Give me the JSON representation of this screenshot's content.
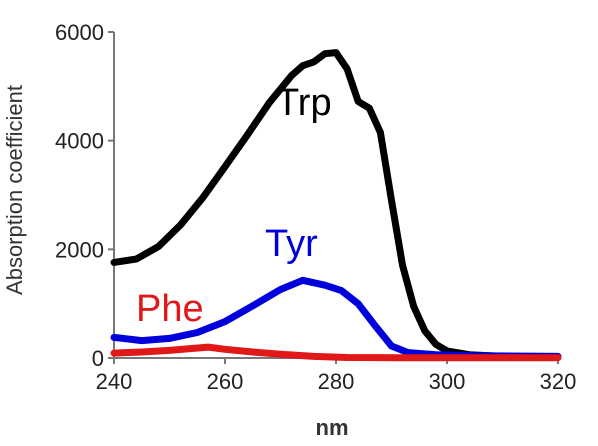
{
  "chart_data": {
    "type": "line",
    "title": "",
    "xlabel": "nm",
    "ylabel": "Absorption coefficient",
    "xlim": [
      240,
      320
    ],
    "ylim": [
      0,
      6000
    ],
    "grid": false,
    "legend": "none",
    "x_ticks": [
      "240",
      "260",
      "280",
      "300",
      "320"
    ],
    "y_ticks": [
      "0",
      "2000",
      "4000",
      "6000"
    ],
    "series": [
      {
        "name": "Trp",
        "color": "#000000",
        "points": [
          [
            240,
            1760
          ],
          [
            244,
            1820
          ],
          [
            248,
            2050
          ],
          [
            252,
            2450
          ],
          [
            256,
            2950
          ],
          [
            260,
            3520
          ],
          [
            264,
            4100
          ],
          [
            268,
            4700
          ],
          [
            272,
            5200
          ],
          [
            274,
            5380
          ],
          [
            276,
            5450
          ],
          [
            278,
            5600
          ],
          [
            280,
            5620
          ],
          [
            282,
            5320
          ],
          [
            284,
            4720
          ],
          [
            286,
            4600
          ],
          [
            288,
            4150
          ],
          [
            290,
            2900
          ],
          [
            292,
            1700
          ],
          [
            294,
            950
          ],
          [
            296,
            500
          ],
          [
            298,
            250
          ],
          [
            300,
            130
          ],
          [
            304,
            60
          ],
          [
            310,
            30
          ],
          [
            320,
            20
          ]
        ]
      },
      {
        "name": "Tyr",
        "color": "#0000dd",
        "points": [
          [
            240,
            380
          ],
          [
            245,
            320
          ],
          [
            250,
            360
          ],
          [
            255,
            470
          ],
          [
            260,
            670
          ],
          [
            265,
            960
          ],
          [
            270,
            1260
          ],
          [
            274,
            1430
          ],
          [
            278,
            1340
          ],
          [
            281,
            1240
          ],
          [
            284,
            1000
          ],
          [
            287,
            600
          ],
          [
            290,
            220
          ],
          [
            293,
            100
          ],
          [
            298,
            60
          ],
          [
            305,
            40
          ],
          [
            320,
            30
          ]
        ]
      },
      {
        "name": "Phe",
        "color": "#e01818",
        "points": [
          [
            240,
            90
          ],
          [
            245,
            110
          ],
          [
            250,
            140
          ],
          [
            254,
            175
          ],
          [
            257,
            200
          ],
          [
            260,
            160
          ],
          [
            265,
            110
          ],
          [
            270,
            70
          ],
          [
            276,
            30
          ],
          [
            282,
            10
          ],
          [
            290,
            5
          ],
          [
            305,
            5
          ],
          [
            320,
            5
          ]
        ]
      }
    ]
  },
  "labels": {
    "x_axis_title": "nm",
    "y_axis_title": "Absorption coefficient",
    "trp": "Trp",
    "tyr": "Tyr",
    "phe": "Phe"
  }
}
